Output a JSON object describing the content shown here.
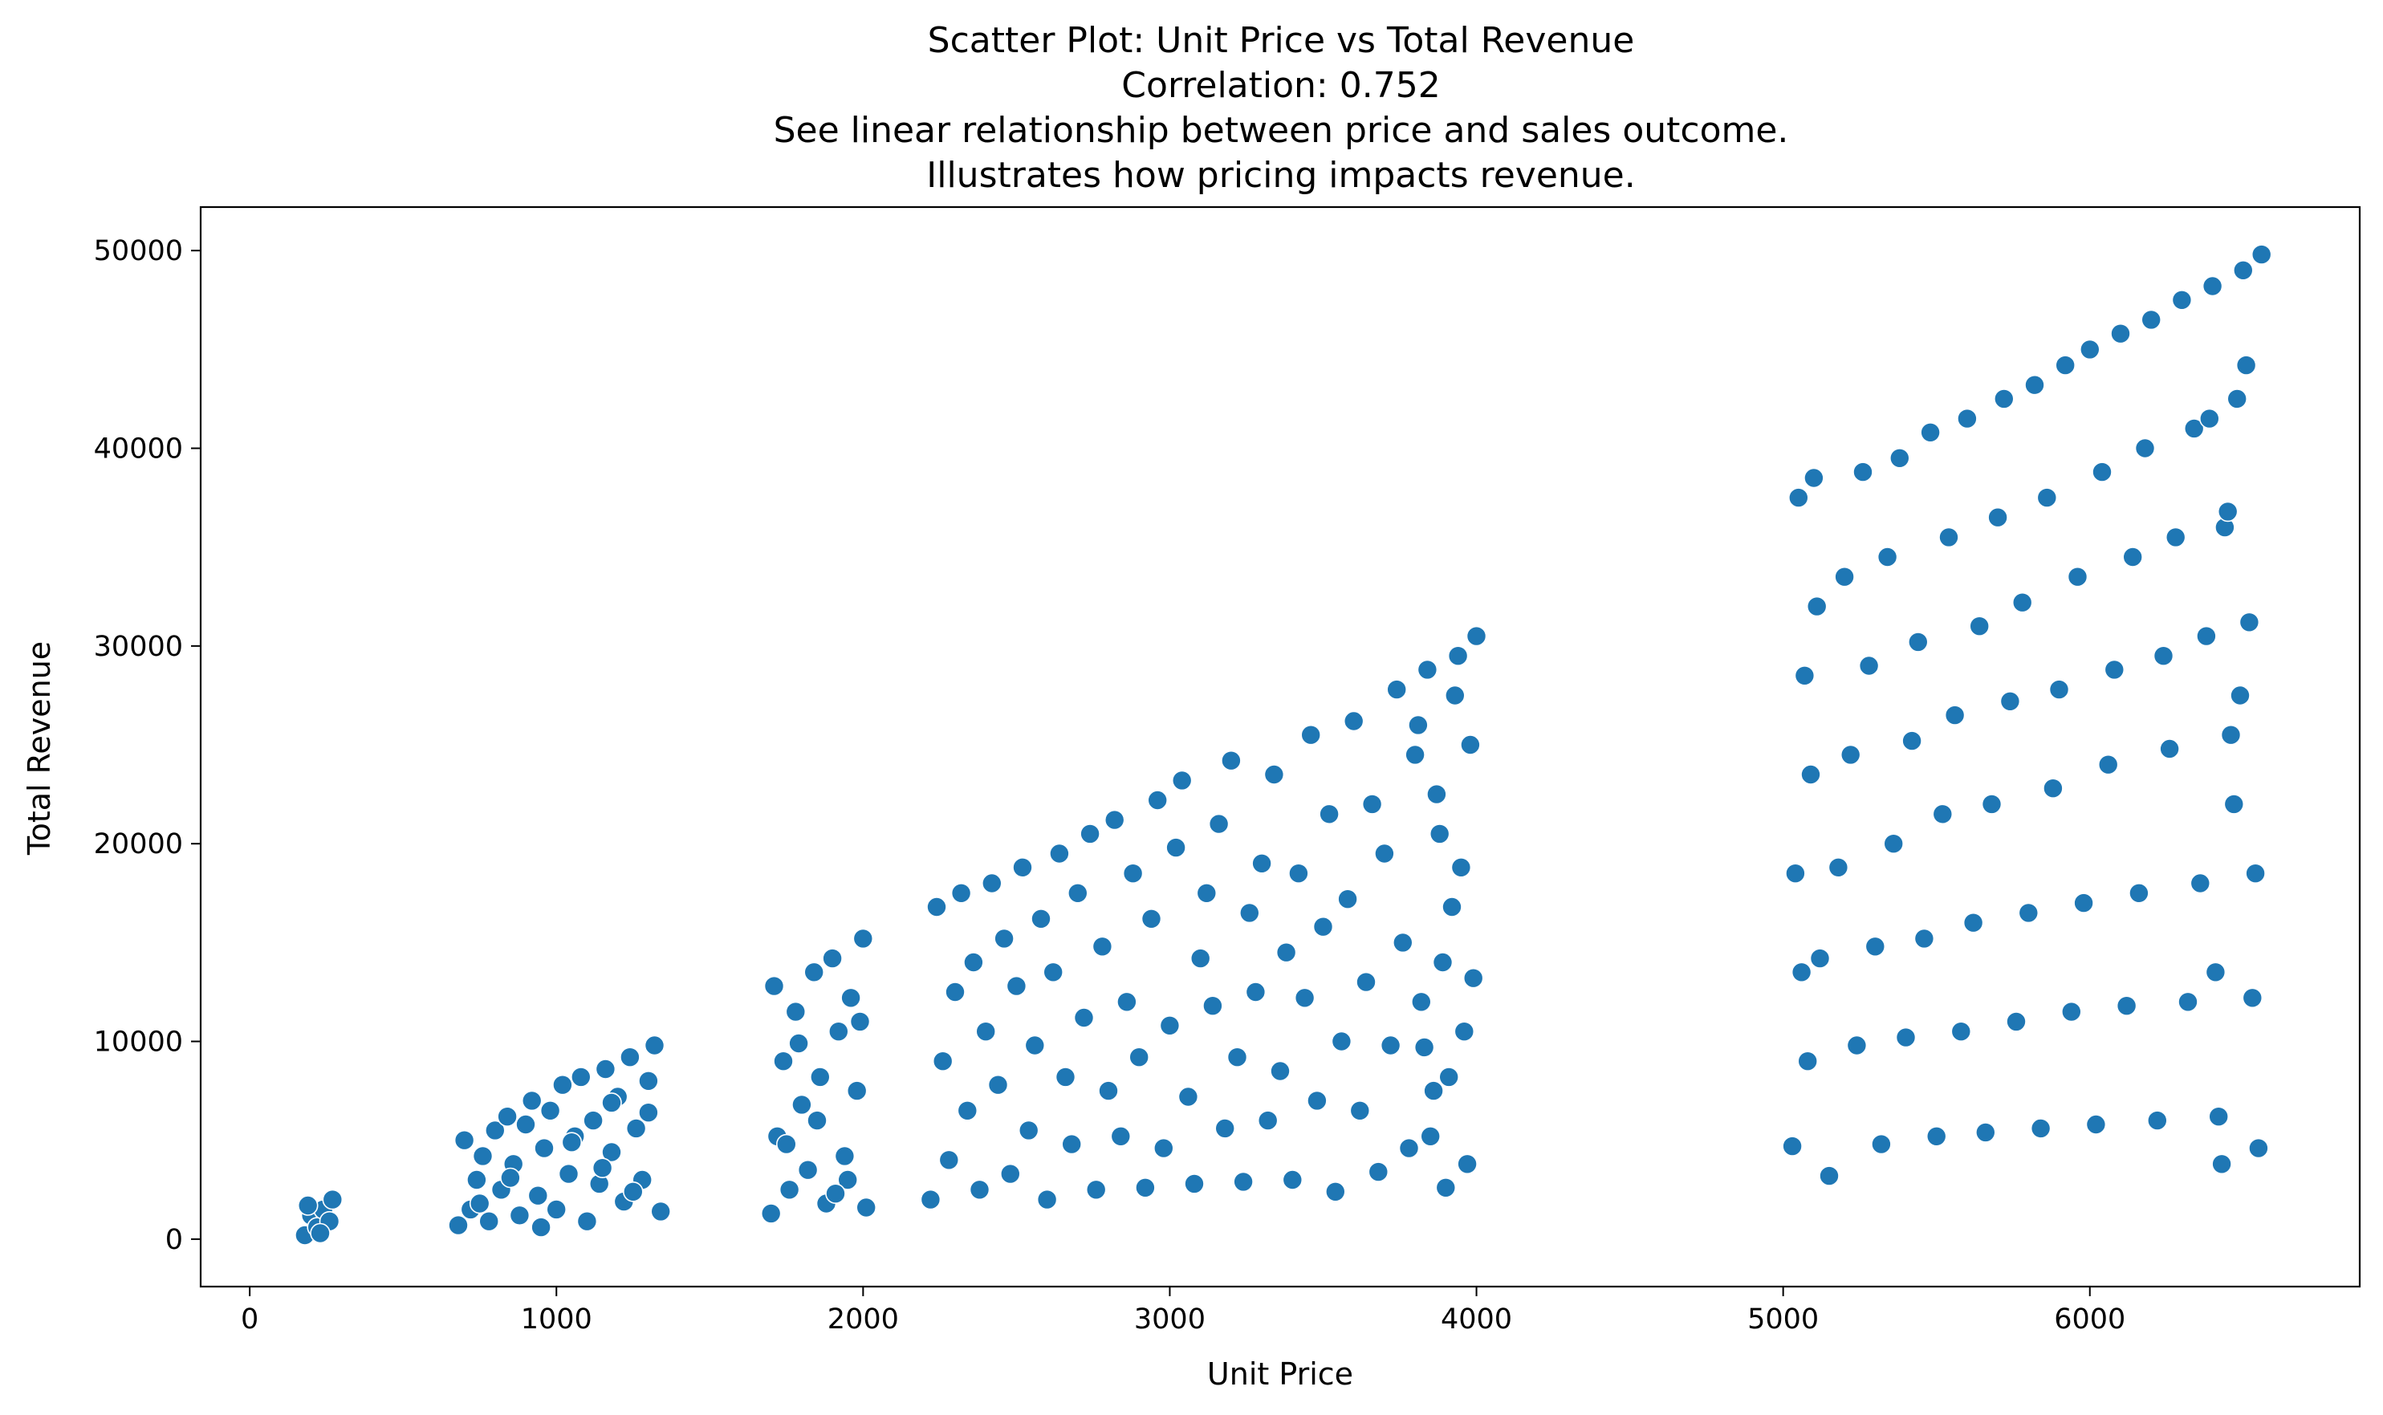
{
  "chart_data": {
    "type": "scatter",
    "title_lines": [
      "Scatter Plot: Unit Price vs Total Revenue",
      "Correlation: 0.752",
      "See linear relationship between price and sales outcome.",
      "Illustrates how pricing impacts revenue."
    ],
    "xlabel": "Unit Price",
    "ylabel": "Total Revenue",
    "xlim": [
      -160,
      6880
    ],
    "ylim": [
      -2400,
      52200
    ],
    "xticks": [
      0,
      1000,
      2000,
      3000,
      4000,
      5000,
      6000
    ],
    "xtick_labels": [
      "0",
      "1000",
      "2000",
      "3000",
      "4000",
      "5000",
      "6000"
    ],
    "yticks": [
      0,
      10000,
      20000,
      30000,
      40000,
      50000
    ],
    "ytick_labels": [
      "0",
      "10000",
      "20000",
      "30000",
      "40000",
      "50000"
    ],
    "grid": false,
    "legend": "none",
    "colors": {
      "points": "#1f77b4",
      "edge": "#ffffff"
    },
    "series": [
      {
        "points": [
          [
            180,
            200
          ],
          [
            200,
            1200
          ],
          [
            220,
            600
          ],
          [
            240,
            1500
          ],
          [
            260,
            900
          ],
          [
            270,
            2000
          ],
          [
            190,
            1700
          ],
          [
            230,
            300
          ],
          [
            680,
            700
          ],
          [
            700,
            5000
          ],
          [
            720,
            1500
          ],
          [
            740,
            3000
          ],
          [
            760,
            4200
          ],
          [
            780,
            900
          ],
          [
            800,
            5500
          ],
          [
            820,
            2500
          ],
          [
            840,
            6200
          ],
          [
            860,
            3800
          ],
          [
            880,
            1200
          ],
          [
            900,
            5800
          ],
          [
            920,
            7000
          ],
          [
            940,
            2200
          ],
          [
            960,
            4600
          ],
          [
            980,
            6500
          ],
          [
            1000,
            1500
          ],
          [
            1020,
            7800
          ],
          [
            1040,
            3300
          ],
          [
            1060,
            5200
          ],
          [
            1080,
            8200
          ],
          [
            1100,
            900
          ],
          [
            1120,
            6000
          ],
          [
            1140,
            2800
          ],
          [
            1160,
            8600
          ],
          [
            1180,
            4400
          ],
          [
            1200,
            7200
          ],
          [
            1220,
            1900
          ],
          [
            1240,
            9200
          ],
          [
            1260,
            5600
          ],
          [
            1280,
            3000
          ],
          [
            1300,
            8000
          ],
          [
            1320,
            9800
          ],
          [
            1340,
            1400
          ],
          [
            1300,
            6400
          ],
          [
            1250,
            2400
          ],
          [
            1150,
            3600
          ],
          [
            1050,
            4900
          ],
          [
            950,
            600
          ],
          [
            850,
            3100
          ],
          [
            750,
            1800
          ],
          [
            1180,
            6900
          ],
          [
            1700,
            1300
          ],
          [
            1710,
            12800
          ],
          [
            1720,
            5200
          ],
          [
            1740,
            9000
          ],
          [
            1760,
            2500
          ],
          [
            1780,
            11500
          ],
          [
            1800,
            6800
          ],
          [
            1820,
            3500
          ],
          [
            1840,
            13500
          ],
          [
            1860,
            8200
          ],
          [
            1880,
            1800
          ],
          [
            1900,
            14200
          ],
          [
            1920,
            10500
          ],
          [
            1940,
            4200
          ],
          [
            1960,
            12200
          ],
          [
            1980,
            7500
          ],
          [
            2000,
            15200
          ],
          [
            2010,
            1600
          ],
          [
            1850,
            6000
          ],
          [
            1750,
            4800
          ],
          [
            1950,
            3000
          ],
          [
            1790,
            9900
          ],
          [
            1910,
            2300
          ],
          [
            1990,
            11000
          ],
          [
            2220,
            2000
          ],
          [
            2240,
            16800
          ],
          [
            2260,
            9000
          ],
          [
            2280,
            4000
          ],
          [
            2300,
            12500
          ],
          [
            2320,
            17500
          ],
          [
            2340,
            6500
          ],
          [
            2360,
            14000
          ],
          [
            2380,
            2500
          ],
          [
            2400,
            10500
          ],
          [
            2420,
            18000
          ],
          [
            2440,
            7800
          ],
          [
            2460,
            15200
          ],
          [
            2480,
            3300
          ],
          [
            2500,
            12800
          ],
          [
            2520,
            18800
          ],
          [
            2540,
            5500
          ],
          [
            2560,
            9800
          ],
          [
            2580,
            16200
          ],
          [
            2600,
            2000
          ],
          [
            2620,
            13500
          ],
          [
            2640,
            19500
          ],
          [
            2660,
            8200
          ],
          [
            2680,
            4800
          ],
          [
            2700,
            17500
          ],
          [
            2720,
            11200
          ],
          [
            2740,
            20500
          ],
          [
            2760,
            2500
          ],
          [
            2780,
            14800
          ],
          [
            2800,
            7500
          ],
          [
            2820,
            21200
          ],
          [
            2840,
            5200
          ],
          [
            2860,
            12000
          ],
          [
            2880,
            18500
          ],
          [
            2900,
            9200
          ],
          [
            2920,
            2600
          ],
          [
            2940,
            16200
          ],
          [
            2960,
            22200
          ],
          [
            2980,
            4600
          ],
          [
            3000,
            10800
          ],
          [
            3020,
            19800
          ],
          [
            3040,
            23200
          ],
          [
            3060,
            7200
          ],
          [
            3080,
            2800
          ],
          [
            3100,
            14200
          ],
          [
            3120,
            17500
          ],
          [
            3140,
            11800
          ],
          [
            3160,
            21000
          ],
          [
            3180,
            5600
          ],
          [
            3200,
            24200
          ],
          [
            3220,
            9200
          ],
          [
            3240,
            2900
          ],
          [
            3260,
            16500
          ],
          [
            3280,
            12500
          ],
          [
            3300,
            19000
          ],
          [
            3320,
            6000
          ],
          [
            3340,
            23500
          ],
          [
            3360,
            8500
          ],
          [
            3380,
            14500
          ],
          [
            3400,
            3000
          ],
          [
            3420,
            18500
          ],
          [
            3440,
            12200
          ],
          [
            3460,
            25500
          ],
          [
            3480,
            7000
          ],
          [
            3500,
            15800
          ],
          [
            3520,
            21500
          ],
          [
            3540,
            2400
          ],
          [
            3560,
            10000
          ],
          [
            3580,
            17200
          ],
          [
            3600,
            26200
          ],
          [
            3620,
            6500
          ],
          [
            3640,
            13000
          ],
          [
            3660,
            22000
          ],
          [
            3680,
            3400
          ],
          [
            3700,
            19500
          ],
          [
            3720,
            9800
          ],
          [
            3740,
            27800
          ],
          [
            3760,
            15000
          ],
          [
            3780,
            4600
          ],
          [
            3800,
            24500
          ],
          [
            3820,
            12000
          ],
          [
            3840,
            28800
          ],
          [
            3860,
            7500
          ],
          [
            3880,
            20500
          ],
          [
            3900,
            2600
          ],
          [
            3920,
            16800
          ],
          [
            3940,
            29500
          ],
          [
            3960,
            10500
          ],
          [
            3980,
            25000
          ],
          [
            4000,
            30500
          ],
          [
            3850,
            5200
          ],
          [
            3870,
            22500
          ],
          [
            3890,
            14000
          ],
          [
            3910,
            8200
          ],
          [
            3930,
            27500
          ],
          [
            3950,
            18800
          ],
          [
            3970,
            3800
          ],
          [
            3990,
            13200
          ],
          [
            3830,
            9700
          ],
          [
            3810,
            26000
          ],
          [
            5030,
            4700
          ],
          [
            5040,
            18500
          ],
          [
            5050,
            37500
          ],
          [
            5060,
            13500
          ],
          [
            5070,
            28500
          ],
          [
            5080,
            9000
          ],
          [
            5090,
            23500
          ],
          [
            5100,
            38500
          ],
          [
            5110,
            32000
          ],
          [
            5120,
            14200
          ],
          [
            5150,
            3200
          ],
          [
            5180,
            18800
          ],
          [
            5200,
            33500
          ],
          [
            5220,
            24500
          ],
          [
            5240,
            9800
          ],
          [
            5260,
            38800
          ],
          [
            5280,
            29000
          ],
          [
            5300,
            14800
          ],
          [
            5320,
            4800
          ],
          [
            5340,
            34500
          ],
          [
            5360,
            20000
          ],
          [
            5380,
            39500
          ],
          [
            5400,
            10200
          ],
          [
            5420,
            25200
          ],
          [
            5440,
            30200
          ],
          [
            5460,
            15200
          ],
          [
            5480,
            40800
          ],
          [
            5500,
            5200
          ],
          [
            5520,
            21500
          ],
          [
            5540,
            35500
          ],
          [
            5560,
            26500
          ],
          [
            5580,
            10500
          ],
          [
            5600,
            41500
          ],
          [
            5620,
            16000
          ],
          [
            5640,
            31000
          ],
          [
            5660,
            5400
          ],
          [
            5680,
            22000
          ],
          [
            5700,
            36500
          ],
          [
            5720,
            42500
          ],
          [
            5740,
            27200
          ],
          [
            5760,
            11000
          ],
          [
            5780,
            32200
          ],
          [
            5800,
            16500
          ],
          [
            5820,
            43200
          ],
          [
            5840,
            5600
          ],
          [
            5860,
            37500
          ],
          [
            5880,
            22800
          ],
          [
            5900,
            27800
          ],
          [
            5920,
            44200
          ],
          [
            5940,
            11500
          ],
          [
            5960,
            33500
          ],
          [
            5980,
            17000
          ],
          [
            6000,
            45000
          ],
          [
            6020,
            5800
          ],
          [
            6040,
            38800
          ],
          [
            6060,
            24000
          ],
          [
            6080,
            28800
          ],
          [
            6100,
            45800
          ],
          [
            6120,
            11800
          ],
          [
            6140,
            34500
          ],
          [
            6160,
            17500
          ],
          [
            6180,
            40000
          ],
          [
            6200,
            46500
          ],
          [
            6220,
            6000
          ],
          [
            6240,
            29500
          ],
          [
            6260,
            24800
          ],
          [
            6280,
            35500
          ],
          [
            6300,
            47500
          ],
          [
            6320,
            12000
          ],
          [
            6340,
            41000
          ],
          [
            6360,
            18000
          ],
          [
            6380,
            30500
          ],
          [
            6400,
            48200
          ],
          [
            6420,
            6200
          ],
          [
            6440,
            36000
          ],
          [
            6460,
            25500
          ],
          [
            6480,
            42500
          ],
          [
            6500,
            49000
          ],
          [
            6520,
            31200
          ],
          [
            6540,
            18500
          ],
          [
            6560,
            49800
          ],
          [
            6550,
            4600
          ],
          [
            6530,
            12200
          ],
          [
            6510,
            44200
          ],
          [
            6490,
            27500
          ],
          [
            6470,
            22000
          ],
          [
            6450,
            36800
          ],
          [
            6430,
            3800
          ],
          [
            6410,
            13500
          ],
          [
            6390,
            41500
          ]
        ]
      }
    ]
  }
}
